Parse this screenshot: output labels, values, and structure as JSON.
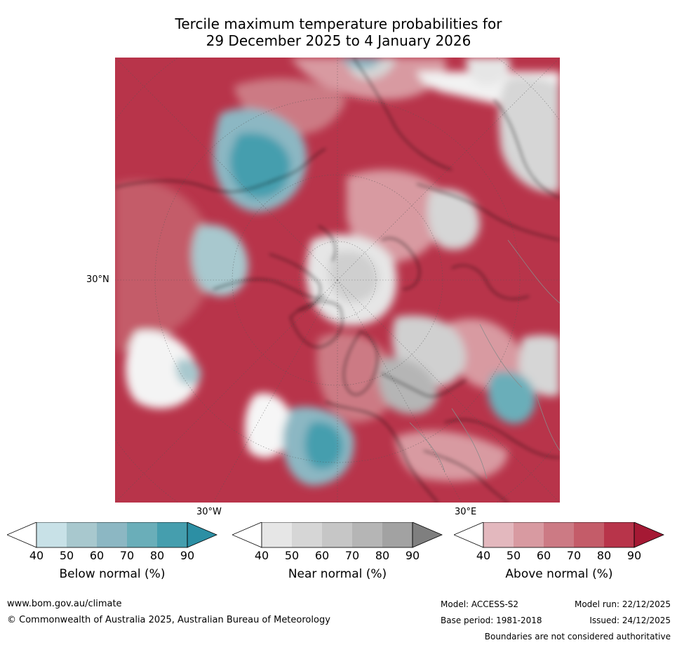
{
  "title": {
    "line1": "Tercile maximum temperature probabilities for",
    "line2": "29 December 2025 to 4 January 2026"
  },
  "map": {
    "lat_label": "30°N",
    "lon_labels": [
      "30°W",
      "30°E"
    ]
  },
  "colorbars": [
    {
      "label": "Below normal (%)",
      "ticks": [
        "40",
        "50",
        "60",
        "70",
        "80",
        "90"
      ],
      "colors": [
        "#ffffff",
        "#c8e1e7",
        "#a8c8ce",
        "#8cb7c3",
        "#6aaeb9",
        "#459eae",
        "#2c8fa4"
      ]
    },
    {
      "label": "Near normal (%)",
      "ticks": [
        "40",
        "50",
        "60",
        "70",
        "80",
        "90"
      ],
      "colors": [
        "#ffffff",
        "#e6e6e6",
        "#d6d6d6",
        "#c6c6c6",
        "#b5b5b5",
        "#a2a2a2",
        "#7f7f7f"
      ]
    },
    {
      "label": "Above normal (%)",
      "ticks": [
        "40",
        "50",
        "60",
        "70",
        "80",
        "90"
      ],
      "colors": [
        "#ffffff",
        "#e3b8be",
        "#d89aa1",
        "#cc7a84",
        "#c45c69",
        "#b8344a",
        "#a51934"
      ]
    }
  ],
  "footer": {
    "url": "www.bom.gov.au/climate",
    "copyright": "© Commonwealth of Australia 2025, Australian Bureau of Meteorology",
    "model": "Model: ACCESS-S2",
    "base_period": "Base period: 1981-2018",
    "model_run": "Model run: 22/12/2025",
    "issued": "Issued: 24/12/2025",
    "disclaimer": "Boundaries are not considered authoritative"
  }
}
